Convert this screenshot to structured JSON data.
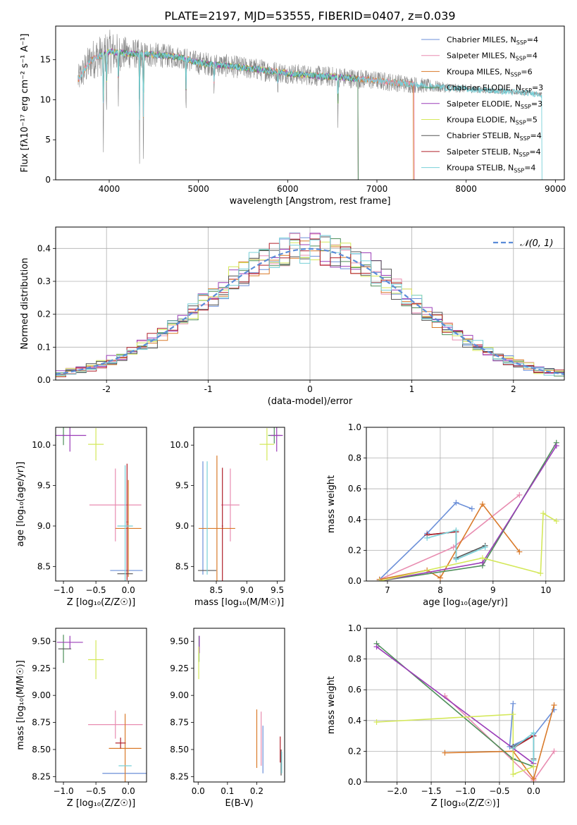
{
  "figure_title": "PLATE=2197, MJD=53555, FIBERID=0407, z=0.039",
  "colors": {
    "chabrier_miles": "#6b8fd8",
    "salpeter_miles": "#e88cb0",
    "kroupa_miles": "#d97a2a",
    "chabrier_elodie": "#4e8f5a",
    "salpeter_elodie": "#9b3db8",
    "kroupa_elodie": "#d4e85a",
    "chabrier_stelib": "#555555",
    "salpeter_stelib": "#b0202a",
    "kroupa_stelib": "#78d0d8",
    "data": "#888888",
    "gauss": "#5b8cd8"
  },
  "chart_data": [
    {
      "id": "spectrum",
      "type": "line",
      "xlabel": "wavelength [Angstrom, rest frame]",
      "ylabel": "Flux [fλ10⁻¹⁷ erg cm⁻² s⁻¹ A⁻¹]",
      "xlim": [
        3400,
        9100
      ],
      "ylim": [
        0,
        19.2
      ],
      "xticks": [
        4000,
        5000,
        6000,
        7000,
        8000,
        9000
      ],
      "yticks": [
        0,
        5,
        10,
        15
      ],
      "grid": false,
      "legend_position": "top-right",
      "legend": [
        {
          "label": "Chabrier MILES, N",
          "sub": "SSP",
          "tail": "=4",
          "color_key": "chabrier_miles"
        },
        {
          "label": "Salpeter MILES, N",
          "sub": "SSP",
          "tail": "=4",
          "color_key": "salpeter_miles"
        },
        {
          "label": "Kroupa MILES, N",
          "sub": "SSP",
          "tail": "=6",
          "color_key": "kroupa_miles"
        },
        {
          "label": "Chabrier ELODIE, N",
          "sub": "SSP",
          "tail": "=3",
          "color_key": "chabrier_elodie"
        },
        {
          "label": "Salpeter ELODIE, N",
          "sub": "SSP",
          "tail": "=3",
          "color_key": "salpeter_elodie"
        },
        {
          "label": "Kroupa ELODIE, N",
          "sub": "SSP",
          "tail": "=5",
          "color_key": "kroupa_elodie"
        },
        {
          "label": "Chabrier STELIB, N",
          "sub": "SSP",
          "tail": "=4",
          "color_key": "chabrier_stelib"
        },
        {
          "label": "Salpeter STELIB, N",
          "sub": "SSP",
          "tail": "=4",
          "color_key": "salpeter_stelib"
        },
        {
          "label": "Kroupa STELIB, N",
          "sub": "SSP",
          "tail": "=4",
          "color_key": "kroupa_stelib"
        }
      ],
      "continuum": {
        "x": [
          3650,
          3800,
          4000,
          4200,
          4500,
          4800,
          5000,
          5200,
          5500,
          5800,
          6000,
          6300,
          6600,
          7000,
          7400,
          7800,
          8200,
          8600,
          8850
        ],
        "y": [
          12.5,
          15.0,
          16.0,
          15.8,
          15.6,
          15.3,
          14.6,
          14.4,
          14.0,
          13.6,
          13.3,
          13.0,
          12.8,
          12.4,
          11.9,
          11.5,
          11.2,
          10.9,
          10.7
        ]
      },
      "noise": [
        1.8,
        2.5,
        2.8,
        2.0,
        1.6,
        1.4,
        1.5,
        1.5,
        1.4,
        1.4,
        1.3,
        1.3,
        1.3,
        1.2,
        1.1,
        0.6,
        0.4,
        0.3,
        0.3
      ],
      "absorption_lines": [
        {
          "x": 3934,
          "y": 1.0
        },
        {
          "x": 3970,
          "y": 7.0
        },
        {
          "x": 4102,
          "y": 8.0
        },
        {
          "x": 4340,
          "y": 2.0
        },
        {
          "x": 4383,
          "y": 0.0
        },
        {
          "x": 4861,
          "y": 7.5
        },
        {
          "x": 5175,
          "y": 10.0
        },
        {
          "x": 5890,
          "y": 10.5
        },
        {
          "x": 6563,
          "y": 6.5
        }
      ],
      "model_cutoffs": [
        {
          "color_key": "kroupa_miles",
          "start": 3650,
          "end": 7410
        },
        {
          "color_key": "salpeter_miles",
          "start": 3650,
          "end": 7420
        },
        {
          "color_key": "kroupa_elodie",
          "start": 3900,
          "end": 6790
        },
        {
          "color_key": "salpeter_elodie",
          "start": 3900,
          "end": 6790
        },
        {
          "color_key": "chabrier_elodie",
          "start": 3900,
          "end": 6790
        },
        {
          "color_key": "kroupa_stelib",
          "start": 3650,
          "end": 8850
        }
      ]
    },
    {
      "id": "residuals",
      "type": "line",
      "xlabel": "(data-model)/error",
      "ylabel": "Normed distribution",
      "xlim": [
        -2.5,
        2.5
      ],
      "ylim": [
        0,
        0.465
      ],
      "xticks": [
        -2,
        -1,
        0,
        1,
        2
      ],
      "yticks": [
        0.0,
        0.1,
        0.2,
        0.3,
        0.4
      ],
      "grid": true,
      "legend_position": "top-right",
      "legend": [
        {
          "label": "𝒩(0, 1)",
          "color_key": "gauss"
        }
      ],
      "bin_width": 0.1,
      "gaussian": {
        "mean": 0,
        "sigma": 1
      }
    },
    {
      "id": "age_vs_Z",
      "type": "scatter",
      "xlabel": "Z [log₁₀(Z/Z☉)]",
      "ylabel": "age  [log₁₀(age/yr)]",
      "xlim": [
        -1.12,
        0.28
      ],
      "ylim": [
        8.32,
        10.22
      ],
      "xticks": [
        -1.0,
        -0.5,
        0.0
      ],
      "yticks": [
        8.5,
        9.0,
        9.5,
        10.0
      ],
      "grid": false,
      "points": [
        {
          "color_key": "chabrier_miles",
          "x": -0.03,
          "y": 8.45,
          "xerr": 0.25,
          "yerr": 0.0
        },
        {
          "color_key": "salpeter_miles",
          "x": -0.2,
          "y": 9.26,
          "xerr": 0.4,
          "yerr": 0.45
        },
        {
          "color_key": "kroupa_miles",
          "x": 0.0,
          "y": 8.97,
          "xerr": 0.2,
          "yerr": 0.6
        },
        {
          "color_key": "chabrier_elodie",
          "x": -1.0,
          "y": 10.12,
          "xerr": 0.02,
          "yerr": 0.12
        },
        {
          "color_key": "salpeter_elodie",
          "x": -0.9,
          "y": 10.12,
          "xerr": 0.25,
          "yerr": 0.2
        },
        {
          "color_key": "kroupa_elodie",
          "x": -0.5,
          "y": 10.01,
          "xerr": 0.12,
          "yerr": 0.2
        },
        {
          "color_key": "chabrier_stelib",
          "x": -0.05,
          "y": 8.41,
          "xerr": 0.12,
          "yerr": 0.0
        },
        {
          "color_key": "salpeter_stelib",
          "x": -0.02,
          "y": 9.05,
          "xerr": 0.01,
          "yerr": 0.72
        },
        {
          "color_key": "kroupa_stelib",
          "x": -0.05,
          "y": 9.0,
          "xerr": 0.12,
          "yerr": 0.75
        }
      ]
    },
    {
      "id": "age_vs_mass",
      "type": "scatter",
      "xlabel": "mass [log₁₀(M/M☉)]",
      "ylabel": "",
      "xlim": [
        8.13,
        9.62
      ],
      "ylim": [
        8.32,
        10.22
      ],
      "xticks": [
        8.5,
        9.0,
        9.5
      ],
      "yticks": [
        8.5,
        9.0,
        9.5,
        10.0
      ],
      "grid": false,
      "points": [
        {
          "color_key": "chabrier_miles",
          "x": 8.28,
          "y": 9.1,
          "xerr": 0.0,
          "yerr": 0.7
        },
        {
          "color_key": "salpeter_miles",
          "x": 8.73,
          "y": 9.26,
          "xerr": 0.15,
          "yerr": 0.45
        },
        {
          "color_key": "kroupa_miles",
          "x": 8.51,
          "y": 8.97,
          "xerr": 0.3,
          "yerr": 0.9
        },
        {
          "color_key": "chabrier_elodie",
          "x": 9.45,
          "y": 10.12,
          "xerr": 0.1,
          "yerr": 0.1
        },
        {
          "color_key": "salpeter_elodie",
          "x": 9.49,
          "y": 10.12,
          "xerr": 0.1,
          "yerr": 0.2
        },
        {
          "color_key": "kroupa_elodie",
          "x": 9.33,
          "y": 10.01,
          "xerr": 0.12,
          "yerr": 0.2
        },
        {
          "color_key": "chabrier_stelib",
          "x": 8.35,
          "y": 8.45,
          "xerr": 0.15,
          "yerr": 0.0
        },
        {
          "color_key": "salpeter_stelib",
          "x": 8.6,
          "y": 9.0,
          "xerr": 0.01,
          "yerr": 0.72
        },
        {
          "color_key": "kroupa_stelib",
          "x": 8.35,
          "y": 9.1,
          "xerr": 0.0,
          "yerr": 0.7
        }
      ]
    },
    {
      "id": "weight_vs_age",
      "type": "line",
      "xlabel": "age  [log₁₀(age/yr)]",
      "ylabel": "mass weight",
      "xlim": [
        6.6,
        10.35
      ],
      "ylim": [
        0,
        1.0
      ],
      "xticks": [
        7,
        8,
        9,
        10
      ],
      "yticks": [
        0.0,
        0.2,
        0.4,
        0.6,
        0.8,
        1.0
      ],
      "grid": true,
      "series": [
        {
          "color_key": "chabrier_miles",
          "x": [
            6.85,
            7.75,
            8.3,
            8.6
          ],
          "y": [
            0.01,
            0.31,
            0.51,
            0.47
          ]
        },
        {
          "color_key": "salpeter_miles",
          "x": [
            6.85,
            8.25,
            9.5
          ],
          "y": [
            0.01,
            0.22,
            0.56
          ]
        },
        {
          "color_key": "kroupa_miles",
          "x": [
            6.85,
            7.75,
            8.0,
            8.8,
            9.5
          ],
          "y": [
            0.01,
            0.07,
            0.02,
            0.5,
            0.19
          ]
        },
        {
          "color_key": "chabrier_elodie",
          "x": [
            6.85,
            8.8,
            10.2
          ],
          "y": [
            0.0,
            0.1,
            0.9
          ]
        },
        {
          "color_key": "salpeter_elodie",
          "x": [
            6.85,
            8.8,
            10.2
          ],
          "y": [
            0.0,
            0.12,
            0.88
          ]
        },
        {
          "color_key": "kroupa_elodie",
          "x": [
            6.85,
            8.8,
            9.9,
            9.95,
            10.2
          ],
          "y": [
            0.0,
            0.15,
            0.05,
            0.44,
            0.39
          ]
        },
        {
          "color_key": "chabrier_stelib",
          "x": [
            7.75,
            8.3,
            8.3,
            8.85
          ],
          "y": [
            0.3,
            0.32,
            0.15,
            0.23
          ]
        },
        {
          "color_key": "salpeter_stelib",
          "x": [
            7.75,
            8.3
          ],
          "y": [
            0.3,
            0.32
          ]
        },
        {
          "color_key": "kroupa_stelib",
          "x": [
            7.75,
            8.3,
            8.3,
            8.85
          ],
          "y": [
            0.28,
            0.33,
            0.14,
            0.22
          ]
        }
      ]
    },
    {
      "id": "mass_vs_Z",
      "type": "scatter",
      "xlabel": "Z [log₁₀(Z/Z☉)]",
      "ylabel": "mass [log₁₀(M/M☉)]",
      "xlim": [
        -1.12,
        0.28
      ],
      "ylim": [
        8.2,
        9.62
      ],
      "xticks": [
        -1.0,
        -0.5,
        0.0
      ],
      "yticks": [
        8.25,
        8.5,
        8.75,
        9.0,
        9.25,
        9.5
      ],
      "grid": false,
      "points": [
        {
          "color_key": "chabrier_miles",
          "x": -0.05,
          "y": 8.28,
          "xerr": 0.35,
          "yerr": 0.0
        },
        {
          "color_key": "salpeter_miles",
          "x": -0.2,
          "y": 8.73,
          "xerr": 0.42,
          "yerr": 0.13
        },
        {
          "color_key": "kroupa_miles",
          "x": -0.05,
          "y": 8.51,
          "xerr": 0.25,
          "yerr": 0.32
        },
        {
          "color_key": "chabrier_elodie",
          "x": -1.0,
          "y": 9.43,
          "xerr": 0.0,
          "yerr": 0.13
        },
        {
          "color_key": "salpeter_elodie",
          "x": -0.9,
          "y": 9.49,
          "xerr": 0.2,
          "yerr": 0.06
        },
        {
          "color_key": "kroupa_elodie",
          "x": -0.5,
          "y": 9.33,
          "xerr": 0.12,
          "yerr": 0.18
        },
        {
          "color_key": "chabrier_stelib",
          "x": -0.98,
          "y": 9.43,
          "xerr": 0.1,
          "yerr": 0.0
        },
        {
          "color_key": "salpeter_stelib",
          "x": -0.12,
          "y": 8.56,
          "xerr": 0.08,
          "yerr": 0.05
        },
        {
          "color_key": "kroupa_stelib",
          "x": -0.05,
          "y": 8.35,
          "xerr": 0.1,
          "yerr": 0.0
        }
      ]
    },
    {
      "id": "mass_vs_EBV",
      "type": "scatter",
      "xlabel": "E(B-V)",
      "ylabel": "",
      "xlim": [
        -0.015,
        0.295
      ],
      "ylim": [
        8.2,
        9.62
      ],
      "xticks": [
        0.0,
        0.1,
        0.2
      ],
      "yticks": [
        8.25,
        8.5,
        8.75,
        9.0,
        9.25,
        9.5
      ],
      "grid": false,
      "points": [
        {
          "color_key": "chabrier_miles",
          "x": 0.221,
          "y": 8.5,
          "xerr": 0.0,
          "yerr": 0.22
        },
        {
          "color_key": "salpeter_miles",
          "x": 0.215,
          "y": 8.6,
          "xerr": 0.0,
          "yerr": 0.25
        },
        {
          "color_key": "kroupa_miles",
          "x": 0.2,
          "y": 8.6,
          "xerr": 0.0,
          "yerr": 0.27
        },
        {
          "color_key": "chabrier_elodie",
          "x": 0.003,
          "y": 9.43,
          "xerr": 0.0,
          "yerr": 0.12
        },
        {
          "color_key": "salpeter_elodie",
          "x": 0.004,
          "y": 9.47,
          "xerr": 0.0,
          "yerr": 0.08
        },
        {
          "color_key": "kroupa_elodie",
          "x": 0.002,
          "y": 9.3,
          "xerr": 0.0,
          "yerr": 0.15
        },
        {
          "color_key": "chabrier_stelib",
          "x": 0.283,
          "y": 8.38,
          "xerr": 0.0,
          "yerr": 0.12
        },
        {
          "color_key": "salpeter_stelib",
          "x": 0.28,
          "y": 8.5,
          "xerr": 0.0,
          "yerr": 0.12
        },
        {
          "color_key": "kroupa_stelib",
          "x": 0.285,
          "y": 8.38,
          "xerr": 0.0,
          "yerr": 0.1
        }
      ]
    },
    {
      "id": "weight_vs_Z",
      "type": "line",
      "xlabel": "Z [log₁₀(Z/Z☉)]",
      "ylabel": "mass weight",
      "xlim": [
        -2.45,
        0.45
      ],
      "ylim": [
        0,
        1.0
      ],
      "xticks": [
        -2.0,
        -1.5,
        -1.0,
        -0.5,
        0.0
      ],
      "yticks": [
        0.0,
        0.2,
        0.4,
        0.6,
        0.8,
        1.0
      ],
      "grid": true,
      "series": [
        {
          "color_key": "chabrier_miles",
          "x": [
            -0.3,
            -0.35,
            0.0,
            0.3
          ],
          "y": [
            0.51,
            0.23,
            0.3,
            0.47
          ]
        },
        {
          "color_key": "salpeter_miles",
          "x": [
            -1.3,
            0.0,
            0.3
          ],
          "y": [
            0.56,
            0.01,
            0.2
          ]
        },
        {
          "color_key": "kroupa_miles",
          "x": [
            -1.3,
            -0.3,
            0.0,
            0.3
          ],
          "y": [
            0.19,
            0.2,
            0.02,
            0.5
          ]
        },
        {
          "color_key": "chabrier_elodie",
          "x": [
            -2.3,
            -0.3,
            0.0
          ],
          "y": [
            0.9,
            0.15,
            0.1
          ]
        },
        {
          "color_key": "salpeter_elodie",
          "x": [
            -2.3,
            0.0
          ],
          "y": [
            0.88,
            0.12
          ]
        },
        {
          "color_key": "kroupa_elodie",
          "x": [
            -2.3,
            -0.3,
            -0.3,
            0.0
          ],
          "y": [
            0.39,
            0.44,
            0.05,
            0.1
          ]
        },
        {
          "color_key": "chabrier_stelib",
          "x": [
            -0.3,
            0.0,
            0.0
          ],
          "y": [
            0.23,
            0.3,
            0.15
          ]
        },
        {
          "color_key": "salpeter_stelib",
          "x": [
            -0.3,
            0.0
          ],
          "y": [
            0.22,
            0.3
          ]
        },
        {
          "color_key": "kroupa_stelib",
          "x": [
            -0.3,
            0.0,
            0.0
          ],
          "y": [
            0.22,
            0.32,
            0.14
          ]
        }
      ]
    }
  ]
}
